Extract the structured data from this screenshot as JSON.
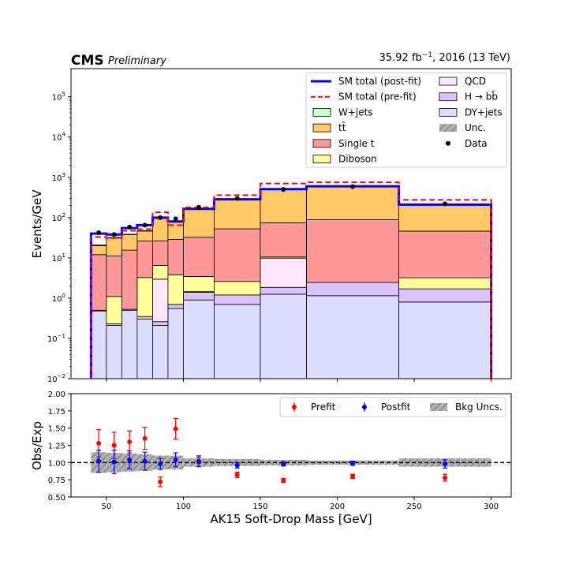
{
  "header": {
    "cms": "CMS",
    "preliminary": "Preliminary",
    "lumi_prefix": "35.92 fb",
    "lumi_exp": "−1",
    "lumi_suffix": ", 2016 (13 TeV)"
  },
  "chart_data": [
    {
      "type": "bar",
      "stacked": true,
      "ylabel": "Events/GeV",
      "log_y": true,
      "ylim": [
        0.01,
        500000
      ],
      "xlim": [
        27,
        313
      ],
      "bin_edges": [
        40,
        50,
        60,
        70,
        80,
        90,
        100,
        120,
        150,
        180,
        240,
        300
      ],
      "series": [
        {
          "name": "DY+jets",
          "color": "#dcdcff",
          "values": [
            0.48,
            0.21,
            0.5,
            0.3,
            0.21,
            0.55,
            0.9,
            0.7,
            1.25,
            1.15,
            0.8
          ]
        },
        {
          "name": "H → bb̄",
          "color": "#dac1ff",
          "values": [
            0.02,
            0.02,
            0.03,
            0.05,
            0.05,
            0.15,
            0.5,
            0.5,
            0.6,
            1.3,
            0.9
          ]
        },
        {
          "name": "QCD",
          "color": "#ffe6ff",
          "values": [
            0.0,
            0.0,
            0.0,
            0.0,
            2.7,
            0.0,
            0.05,
            0.0,
            8.0,
            0.0,
            0.0
          ]
        },
        {
          "name": "Diboson",
          "color": "#ffff99",
          "values": [
            0.0,
            0.87,
            0.0,
            2.9,
            3.5,
            3.1,
            2.0,
            1.4,
            0.65,
            0.0,
            1.5
          ]
        },
        {
          "name": "Single t",
          "color": "#ff9999",
          "values": [
            11.5,
            10.0,
            15.0,
            23.0,
            20.0,
            25.0,
            29.0,
            50.0,
            64.0,
            86.0,
            43.0
          ]
        },
        {
          "name": "tt̄",
          "color": "#ffc966",
          "values": [
            8.0,
            20.0,
            22.0,
            20.0,
            70.0,
            50.0,
            130.0,
            232.0,
            433.0,
            507.0,
            161.0
          ]
        },
        {
          "name": "W+jets",
          "color": "#ccffcc",
          "values": [
            1.0,
            1.0,
            1.0,
            1.0,
            1.5,
            1.0,
            1.0,
            1.0,
            1.0,
            1.0,
            1.0
          ]
        }
      ],
      "sm_postfit": {
        "name": "SM total (post-fit)",
        "color": "#0000ff",
        "values": [
          40,
          38,
          55,
          65,
          100,
          80,
          165,
          285,
          510,
          600,
          210
        ]
      },
      "sm_prefit": {
        "name": "SM total (pre-fit)",
        "color": "#ff0000",
        "values": [
          33,
          31,
          47,
          52,
          135,
          65,
          178,
          360,
          700,
          750,
          275
        ]
      },
      "data": {
        "name": "Data",
        "x": [
          45,
          55,
          65,
          75,
          85,
          95,
          110,
          135,
          165,
          210,
          270
        ],
        "values": [
          42,
          38,
          58,
          65,
          100,
          93,
          180,
          300,
          500,
          590,
          220
        ]
      },
      "uncertainty": {
        "name": "Unc."
      },
      "legend_position": "top-right"
    },
    {
      "type": "scatter",
      "xlabel": "AK15 Soft-Drop Mass [GeV]",
      "ylabel": "Obs/Exp",
      "xlim": [
        27,
        313
      ],
      "ylim": [
        0.5,
        2.0
      ],
      "yticks": [
        0.5,
        0.75,
        1.0,
        1.25,
        1.5,
        1.75,
        2.0
      ],
      "xticks": [
        50,
        100,
        150,
        200,
        250,
        300
      ],
      "reference_line": 1.0,
      "series": [
        {
          "name": "Prefit",
          "color": "#ff0000",
          "x": [
            45,
            55,
            65,
            75,
            85,
            95,
            110,
            135,
            165,
            210,
            270
          ],
          "values": [
            1.28,
            1.25,
            1.3,
            1.35,
            0.72,
            1.49,
            1.02,
            0.82,
            0.74,
            0.8,
            0.78
          ],
          "err": [
            0.2,
            0.19,
            0.16,
            0.16,
            0.07,
            0.15,
            0.08,
            0.04,
            0.03,
            0.03,
            0.05
          ]
        },
        {
          "name": "Postfit",
          "color": "#0000ff",
          "x": [
            45,
            55,
            65,
            75,
            85,
            95,
            110,
            135,
            165,
            210,
            270
          ],
          "values": [
            1.02,
            1.01,
            1.04,
            1.02,
            0.98,
            1.04,
            1.01,
            0.96,
            0.98,
            0.99,
            0.98
          ],
          "err": [
            0.16,
            0.17,
            0.13,
            0.13,
            0.08,
            0.1,
            0.07,
            0.04,
            0.03,
            0.03,
            0.06
          ]
        }
      ],
      "band": {
        "name": "Bkg Uncs.",
        "bin_edges": [
          40,
          50,
          60,
          70,
          80,
          90,
          100,
          120,
          150,
          180,
          240,
          300
        ],
        "half_width": [
          0.15,
          0.14,
          0.13,
          0.12,
          0.1,
          0.1,
          0.06,
          0.05,
          0.04,
          0.03,
          0.06
        ]
      },
      "legend_position": "top-right"
    }
  ]
}
